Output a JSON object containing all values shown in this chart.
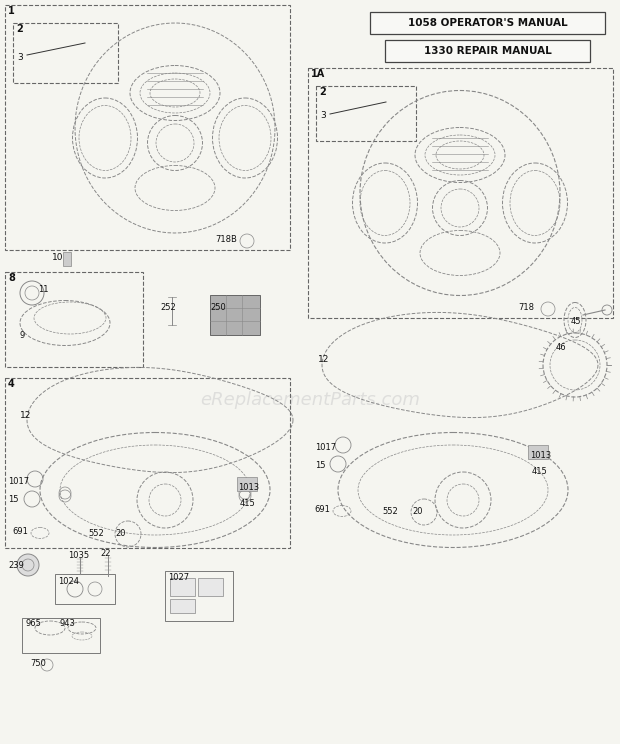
{
  "bg_color": "#f5f5f0",
  "border_color": "#666666",
  "line_color": "#888888",
  "text_color": "#111111",
  "watermark": "eReplacementParts.com",
  "figsize": [
    6.2,
    7.44
  ],
  "dpi": 100,
  "manual_box1": "1058 OPERATOR'S MANUAL",
  "manual_box2": "1330 REPAIR MANUAL",
  "labels": {
    "box1": "1",
    "box1A": "1A",
    "box8": "8",
    "box4": "4",
    "p718B": "718B",
    "p718": "718",
    "p10": "10",
    "p11": "11",
    "p9": "9",
    "p252": "252",
    "p250": "250",
    "p12": "12",
    "p12r": "12",
    "p1017l": "1017",
    "p1017r": "1017",
    "p15l": "15",
    "p15r": "15",
    "p1013l": "1013",
    "p1013r": "1013",
    "p415l": "415",
    "p415r": "415",
    "p691l": "691",
    "p691r": "691",
    "p552l": "552",
    "p552r": "552",
    "p20l": "20",
    "p20r": "20",
    "p45": "45",
    "p46": "46",
    "p239": "239",
    "p1035": "1035",
    "p22": "22",
    "p1024": "1024",
    "p1027": "1027",
    "p965": "965",
    "p943": "943",
    "p750": "750",
    "p2l": "2",
    "p3l": "3",
    "p2r": "2",
    "p3r": "3"
  }
}
